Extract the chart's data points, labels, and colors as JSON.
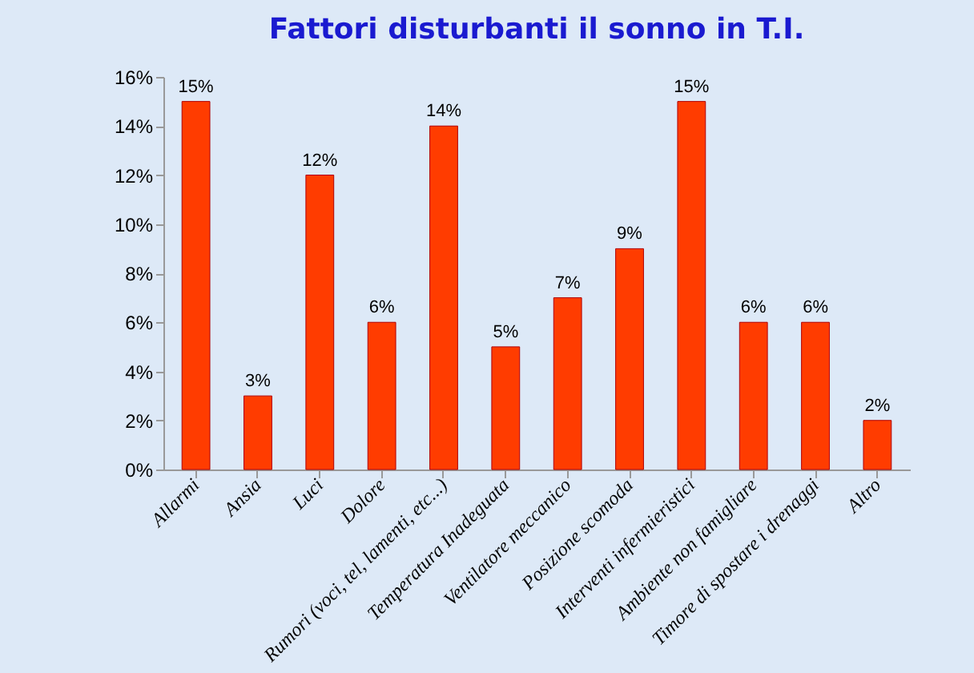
{
  "chart_data": {
    "type": "bar",
    "title": "Fattori disturbanti il sonno in T.I.",
    "categories": [
      "Allarmi",
      "Ansia",
      "Luci",
      "Dolore",
      "Rumori (voci, tel, lamenti, etc...)",
      "Temperatura Inadeguata",
      "Ventilatore meccanico",
      "Posizione scomoda",
      "Interventi infermieristici",
      "Ambiente non famigliare",
      "Timore di spostare i drenaggi",
      "Altro"
    ],
    "values": [
      15,
      3,
      12,
      6,
      14,
      5,
      7,
      9,
      15,
      6,
      6,
      2
    ],
    "value_labels": [
      "15%",
      "3%",
      "12%",
      "6%",
      "14%",
      "5%",
      "7%",
      "9%",
      "15%",
      "6%",
      "6%",
      "2%"
    ],
    "color": "#ff3c00",
    "ylim": [
      0,
      16
    ],
    "yticks": [
      {
        "value": 0,
        "label": "0%"
      },
      {
        "value": 2,
        "label": "2%"
      },
      {
        "value": 4,
        "label": "4%"
      },
      {
        "value": 6,
        "label": "6%"
      },
      {
        "value": 8,
        "label": "8%"
      },
      {
        "value": 10,
        "label": "10%"
      },
      {
        "value": 12,
        "label": "12%"
      },
      {
        "value": 14,
        "label": "14%"
      },
      {
        "value": 16,
        "label": "16%"
      }
    ],
    "grid": false
  }
}
